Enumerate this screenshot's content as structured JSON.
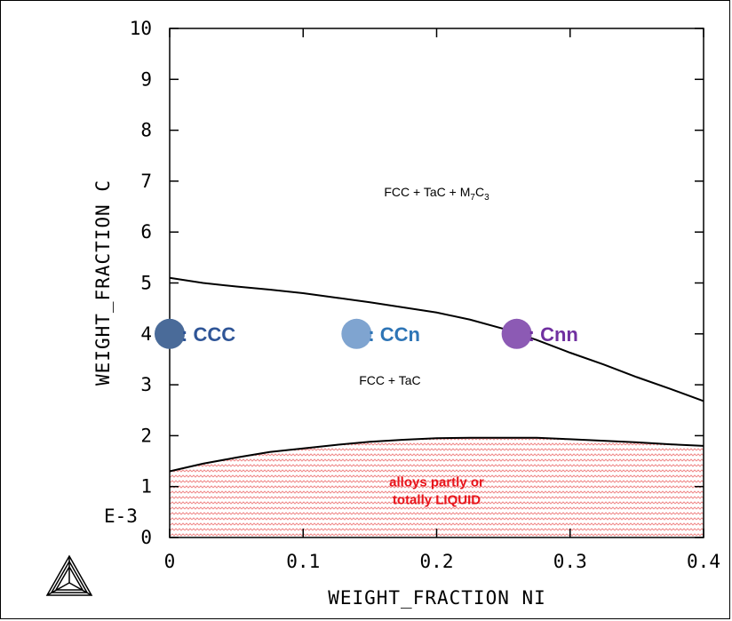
{
  "chart_data": {
    "type": "line",
    "xlabel": "WEIGHT_FRACTION NI",
    "ylabel": "WEIGHT_FRACTION C",
    "y_exponent_label": "E-3",
    "xlim": [
      0,
      0.4
    ],
    "ylim": [
      0,
      10
    ],
    "x_ticks": [
      "0",
      "0.1",
      "0.2",
      "0.3",
      "0.4"
    ],
    "y_ticks": [
      "0",
      "1",
      "2",
      "3",
      "4",
      "5",
      "6",
      "7",
      "8",
      "9",
      "10"
    ],
    "grid": false,
    "series": [
      {
        "x": [
          0,
          0.025,
          0.05,
          0.075,
          0.1,
          0.125,
          0.15,
          0.175,
          0.2,
          0.225,
          0.25,
          0.275,
          0.3,
          0.325,
          0.35,
          0.375,
          0.4
        ],
        "y": [
          5.1,
          5.0,
          4.93,
          4.87,
          4.8,
          4.71,
          4.62,
          4.52,
          4.42,
          4.28,
          4.1,
          3.88,
          3.63,
          3.4,
          3.15,
          2.92,
          2.68
        ]
      },
      {
        "x": [
          0,
          0.025,
          0.05,
          0.075,
          0.1,
          0.125,
          0.15,
          0.175,
          0.2,
          0.225,
          0.25,
          0.275,
          0.3,
          0.325,
          0.35,
          0.375,
          0.4
        ],
        "y": [
          1.3,
          1.45,
          1.57,
          1.68,
          1.75,
          1.82,
          1.88,
          1.92,
          1.95,
          1.96,
          1.96,
          1.96,
          1.93,
          1.9,
          1.87,
          1.83,
          1.8
        ]
      }
    ],
    "regions": [
      {
        "label_main": "FCC + TaC + M",
        "sub1": "7",
        "mid": "C",
        "sub2": "3",
        "x": 0.2,
        "y": 6.7
      },
      {
        "label_main": "FCC + TaC",
        "x": 0.165,
        "y": 3.0
      }
    ],
    "liquid_region": {
      "label_line1": "alloys partly or",
      "label_line2": "totally LIQUID",
      "x": 0.2,
      "y": 1.0,
      "color": "#e8141b"
    },
    "markers": [
      {
        "label": ": CCC",
        "x": 0.0,
        "y": 4.0,
        "color": "#4a6b99",
        "label_color": "#2f5597"
      },
      {
        "label": ": CCn",
        "x": 0.14,
        "y": 4.0,
        "color": "#7fa4d0",
        "label_color": "#2e75b6"
      },
      {
        "label": ": Cnn",
        "x": 0.26,
        "y": 4.0,
        "color": "#8c5ab4",
        "label_color": "#7030a0"
      }
    ],
    "logo_icon": "thermo-calc-triangle-logo"
  }
}
